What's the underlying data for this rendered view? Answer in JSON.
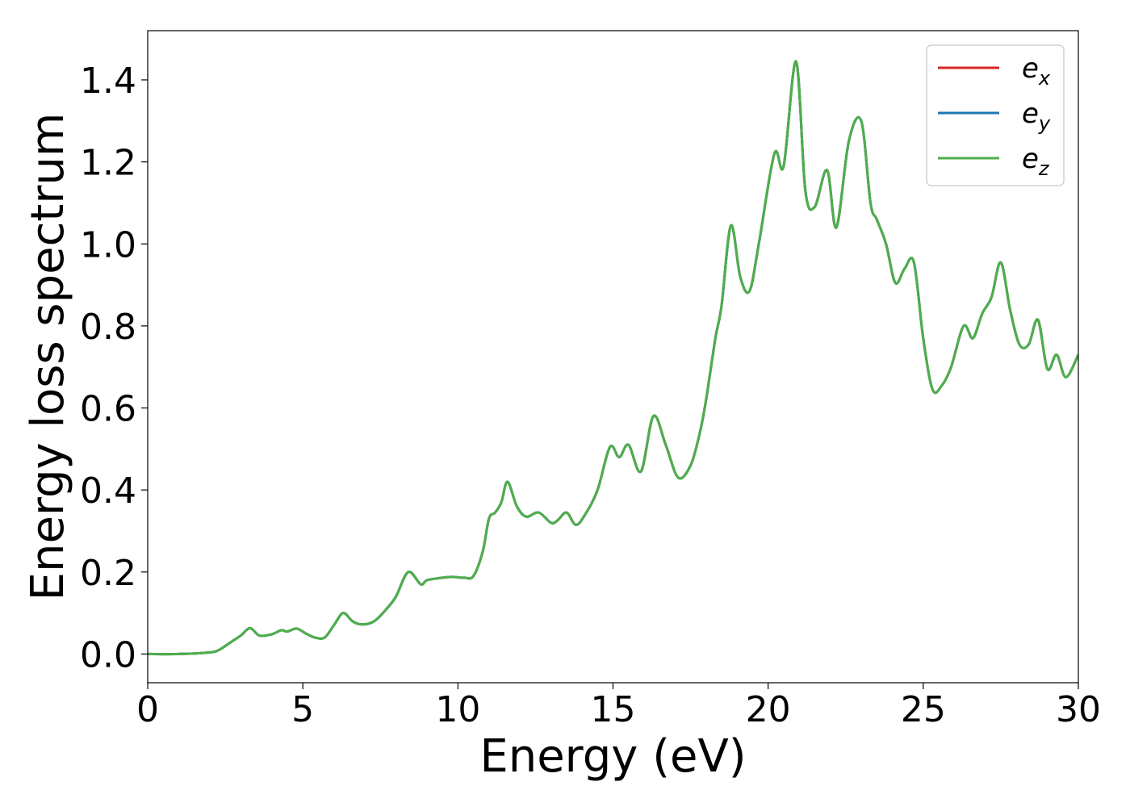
{
  "chart_data": {
    "type": "line",
    "xlabel": "Energy (eV)",
    "ylabel": "Energy loss spectrum",
    "xlim": [
      0,
      30
    ],
    "ylim": [
      -0.07,
      1.52
    ],
    "xticks": [
      0,
      5,
      10,
      15,
      20,
      25,
      30
    ],
    "yticks": [
      0.0,
      0.2,
      0.4,
      0.6,
      0.8,
      1.0,
      1.2,
      1.4
    ],
    "xtick_labels": [
      "0",
      "5",
      "10",
      "15",
      "20",
      "25",
      "30"
    ],
    "ytick_labels": [
      "0.0",
      "0.2",
      "0.4",
      "0.6",
      "0.8",
      "1.0",
      "1.2",
      "1.4"
    ],
    "grid": false,
    "legend_position": "top-right",
    "series": [
      {
        "name": "e",
        "subscript": "x",
        "color": "#d62728"
      },
      {
        "name": "e",
        "subscript": "y",
        "color": "#1f77b4"
      },
      {
        "name": "e",
        "subscript": "z",
        "color": "#4daf4a"
      }
    ],
    "x": [
      0,
      1,
      2,
      2.3,
      2.7,
      3.0,
      3.3,
      3.6,
      4.0,
      4.3,
      4.5,
      4.8,
      5.1,
      5.4,
      5.7,
      6.0,
      6.3,
      6.6,
      6.9,
      7.3,
      7.7,
      8.0,
      8.4,
      8.8,
      9.0,
      9.4,
      9.8,
      10.2,
      10.5,
      10.8,
      11.0,
      11.2,
      11.4,
      11.6,
      11.9,
      12.2,
      12.6,
      13.0,
      13.2,
      13.5,
      13.8,
      14.1,
      14.5,
      14.9,
      15.2,
      15.5,
      15.9,
      16.3,
      16.7,
      17.1,
      17.5,
      17.8,
      18.0,
      18.3,
      18.5,
      18.8,
      19.1,
      19.4,
      19.7,
      20.2,
      20.5,
      20.9,
      21.2,
      21.5,
      21.9,
      22.2,
      22.6,
      23.0,
      23.3,
      23.5,
      23.8,
      24.1,
      24.4,
      24.7,
      25.0,
      25.3,
      25.6,
      25.9,
      26.3,
      26.6,
      26.9,
      27.2,
      27.5,
      27.8,
      28.1,
      28.4,
      28.7,
      29.0,
      29.3,
      29.6,
      30.0
    ],
    "values": [
      0.0,
      0.0,
      0.004,
      0.01,
      0.03,
      0.045,
      0.063,
      0.045,
      0.048,
      0.058,
      0.055,
      0.062,
      0.05,
      0.04,
      0.04,
      0.07,
      0.1,
      0.08,
      0.072,
      0.08,
      0.11,
      0.14,
      0.2,
      0.17,
      0.18,
      0.185,
      0.188,
      0.186,
      0.19,
      0.25,
      0.33,
      0.345,
      0.37,
      0.42,
      0.36,
      0.335,
      0.345,
      0.32,
      0.325,
      0.345,
      0.315,
      0.34,
      0.4,
      0.505,
      0.48,
      0.51,
      0.445,
      0.58,
      0.51,
      0.43,
      0.46,
      0.54,
      0.62,
      0.77,
      0.85,
      1.045,
      0.92,
      0.885,
      1.0,
      1.22,
      1.19,
      1.445,
      1.13,
      1.09,
      1.18,
      1.04,
      1.25,
      1.3,
      1.1,
      1.06,
      1.0,
      0.905,
      0.94,
      0.955,
      0.77,
      0.645,
      0.655,
      0.7,
      0.8,
      0.77,
      0.83,
      0.87,
      0.955,
      0.84,
      0.755,
      0.755,
      0.815,
      0.695,
      0.73,
      0.675,
      0.73
    ]
  }
}
